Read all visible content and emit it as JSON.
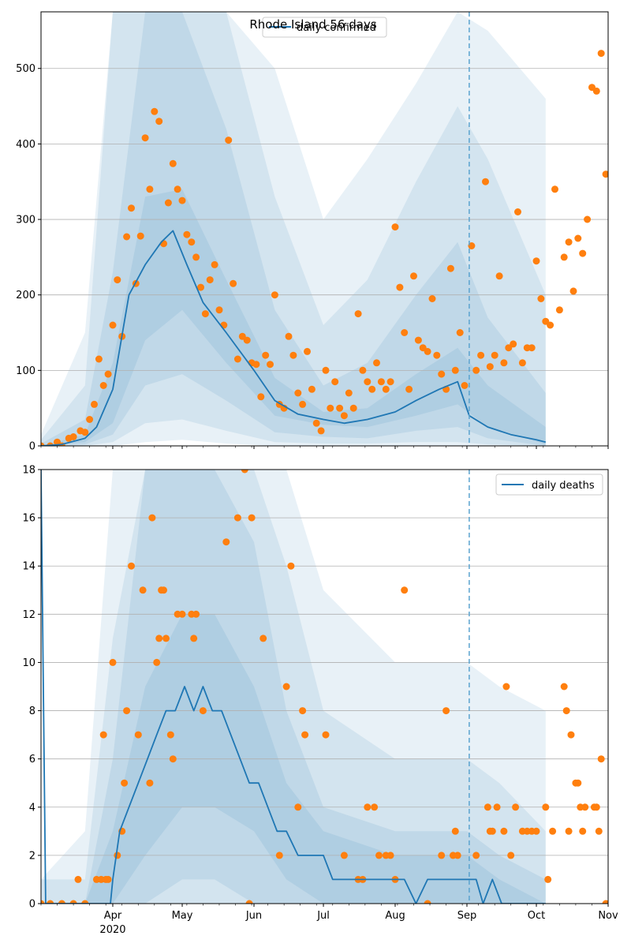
{
  "figure": {
    "title": "Rhode Island 56 days"
  },
  "colors": {
    "model": "#1f77b4",
    "observed": "#ff7f0e",
    "band": "#1f77b4",
    "grid": "#b0b0b0",
    "forecast_line": "#5ba3cf"
  },
  "chart_data": [
    {
      "type": "line",
      "name": "confirmed-panel",
      "title": "Rhode Island 56 days",
      "legend": {
        "label": "daily confirmed",
        "placement": "upper center"
      },
      "x_axis": {
        "type": "date",
        "range": [
          "2020-03-01",
          "2020-11-01"
        ]
      },
      "ylim": [
        0,
        575
      ],
      "yticks": [
        0,
        100,
        200,
        300,
        400,
        500
      ],
      "grid": "y",
      "forecast_start": "2020-09-02",
      "model_series": {
        "name": "daily confirmed",
        "x": [
          "2020-03-01",
          "2020-03-10",
          "2020-03-20",
          "2020-03-25",
          "2020-04-01",
          "2020-04-08",
          "2020-04-15",
          "2020-04-22",
          "2020-04-27",
          "2020-05-03",
          "2020-05-10",
          "2020-05-20",
          "2020-06-01",
          "2020-06-10",
          "2020-06-20",
          "2020-07-01",
          "2020-07-10",
          "2020-07-20",
          "2020-08-01",
          "2020-08-10",
          "2020-08-20",
          "2020-08-28",
          "2020-09-02",
          "2020-09-10",
          "2020-09-20",
          "2020-10-01",
          "2020-10-05"
        ],
        "y": [
          0,
          2,
          10,
          25,
          75,
          200,
          240,
          270,
          285,
          240,
          190,
          150,
          100,
          60,
          42,
          35,
          30,
          35,
          45,
          60,
          75,
          85,
          40,
          25,
          15,
          8,
          5
        ]
      },
      "bands": [
        {
          "x": [
            "2020-03-01",
            "2020-03-20",
            "2020-04-01",
            "2020-04-15",
            "2020-05-01",
            "2020-05-20",
            "2020-06-10",
            "2020-07-01",
            "2020-07-20",
            "2020-08-10",
            "2020-08-28",
            "2020-09-10",
            "2020-10-05"
          ],
          "low": [
            0,
            5,
            30,
            140,
            180,
            110,
            40,
            28,
            25,
            40,
            55,
            25,
            2
          ],
          "high": [
            0,
            15,
            110,
            330,
            340,
            220,
            90,
            45,
            50,
            95,
            130,
            80,
            25
          ]
        },
        {
          "x": [
            "2020-03-01",
            "2020-03-20",
            "2020-04-01",
            "2020-04-15",
            "2020-05-01",
            "2020-05-20",
            "2020-06-10",
            "2020-07-01",
            "2020-07-20",
            "2020-08-10",
            "2020-08-28",
            "2020-09-10",
            "2020-10-05"
          ],
          "low": [
            0,
            2,
            15,
            80,
            95,
            60,
            18,
            12,
            10,
            20,
            25,
            10,
            0
          ],
          "high": [
            3,
            35,
            230,
            575,
            575,
            420,
            180,
            80,
            110,
            200,
            270,
            170,
            70
          ]
        },
        {
          "x": [
            "2020-03-01",
            "2020-03-20",
            "2020-04-01",
            "2020-04-15",
            "2020-05-01",
            "2020-05-20",
            "2020-06-10",
            "2020-07-01",
            "2020-07-20",
            "2020-08-10",
            "2020-08-28",
            "2020-09-10",
            "2020-10-05"
          ],
          "low": [
            0,
            0,
            5,
            30,
            35,
            20,
            5,
            3,
            3,
            5,
            5,
            2,
            0
          ],
          "high": [
            8,
            80,
            575,
            575,
            575,
            575,
            330,
            160,
            220,
            350,
            450,
            380,
            200
          ]
        },
        {
          "x": [
            "2020-03-01",
            "2020-03-20",
            "2020-04-01",
            "2020-04-15",
            "2020-05-01",
            "2020-05-20",
            "2020-06-10",
            "2020-07-01",
            "2020-07-20",
            "2020-08-10",
            "2020-08-28",
            "2020-09-10",
            "2020-10-05"
          ],
          "low": [
            0,
            0,
            0,
            5,
            8,
            3,
            0,
            0,
            0,
            0,
            0,
            0,
            0
          ],
          "high": [
            15,
            150,
            575,
            575,
            575,
            575,
            500,
            300,
            380,
            480,
            575,
            550,
            460
          ]
        }
      ],
      "observed": {
        "x": [
          "2020-03-01",
          "2020-03-05",
          "2020-03-08",
          "2020-03-10",
          "2020-03-13",
          "2020-03-15",
          "2020-03-18",
          "2020-03-20",
          "2020-03-22",
          "2020-03-24",
          "2020-03-26",
          "2020-03-28",
          "2020-03-30",
          "2020-04-01",
          "2020-04-03",
          "2020-04-05",
          "2020-04-07",
          "2020-04-09",
          "2020-04-11",
          "2020-04-13",
          "2020-04-15",
          "2020-04-17",
          "2020-04-19",
          "2020-04-21",
          "2020-04-23",
          "2020-04-25",
          "2020-04-27",
          "2020-04-29",
          "2020-05-01",
          "2020-05-03",
          "2020-05-05",
          "2020-05-07",
          "2020-05-09",
          "2020-05-11",
          "2020-05-13",
          "2020-05-15",
          "2020-05-17",
          "2020-05-19",
          "2020-05-21",
          "2020-05-23",
          "2020-05-25",
          "2020-05-27",
          "2020-05-29",
          "2020-05-31",
          "2020-06-02",
          "2020-06-04",
          "2020-06-06",
          "2020-06-08",
          "2020-06-10",
          "2020-06-12",
          "2020-06-14",
          "2020-06-16",
          "2020-06-18",
          "2020-06-20",
          "2020-06-22",
          "2020-06-24",
          "2020-06-26",
          "2020-06-28",
          "2020-06-30",
          "2020-07-02",
          "2020-07-04",
          "2020-07-06",
          "2020-07-08",
          "2020-07-10",
          "2020-07-12",
          "2020-07-14",
          "2020-07-16",
          "2020-07-18",
          "2020-07-20",
          "2020-07-22",
          "2020-07-24",
          "2020-07-26",
          "2020-07-28",
          "2020-07-30",
          "2020-08-01",
          "2020-08-03",
          "2020-08-05",
          "2020-08-07",
          "2020-08-09",
          "2020-08-11",
          "2020-08-13",
          "2020-08-15",
          "2020-08-17",
          "2020-08-19",
          "2020-08-21",
          "2020-08-23",
          "2020-08-25",
          "2020-08-27",
          "2020-08-29",
          "2020-08-31",
          "2020-09-03",
          "2020-09-05",
          "2020-09-07",
          "2020-09-09",
          "2020-09-11",
          "2020-09-13",
          "2020-09-15",
          "2020-09-17",
          "2020-09-19",
          "2020-09-21",
          "2020-09-23",
          "2020-09-25",
          "2020-09-27",
          "2020-09-29",
          "2020-10-01",
          "2020-10-03",
          "2020-10-05",
          "2020-10-07",
          "2020-10-09",
          "2020-10-11",
          "2020-10-13",
          "2020-10-15",
          "2020-10-17",
          "2020-10-19",
          "2020-10-21",
          "2020-10-23",
          "2020-10-25",
          "2020-10-27",
          "2020-10-29",
          "2020-10-31"
        ],
        "y": [
          0,
          0,
          5,
          0,
          10,
          12,
          20,
          18,
          35,
          55,
          115,
          80,
          95,
          160,
          220,
          145,
          277,
          315,
          215,
          278,
          408,
          340,
          443,
          430,
          268,
          322,
          374,
          340,
          325,
          280,
          270,
          250,
          210,
          175,
          220,
          240,
          180,
          160,
          405,
          215,
          115,
          145,
          140,
          110,
          108,
          65,
          120,
          108,
          200,
          55,
          50,
          145,
          120,
          70,
          55,
          125,
          75,
          30,
          20,
          100,
          50,
          85,
          50,
          40,
          70,
          50,
          175,
          100,
          85,
          75,
          110,
          85,
          75,
          85,
          290,
          210,
          150,
          75,
          225,
          140,
          130,
          125,
          195,
          120,
          95,
          75,
          235,
          100,
          150,
          80,
          265,
          100,
          120,
          350,
          105,
          120,
          225,
          110,
          130,
          135,
          310,
          110,
          130,
          130,
          245,
          195,
          165,
          160,
          340,
          180,
          250,
          270,
          205,
          275,
          255,
          300,
          475,
          470,
          520,
          360
        ]
      }
    },
    {
      "type": "line",
      "name": "deaths-panel",
      "legend": {
        "label": "daily deaths",
        "placement": "upper right"
      },
      "x_axis": {
        "type": "date",
        "range": [
          "2020-03-01",
          "2020-11-01"
        ]
      },
      "xticks": [
        {
          "date": "2020-04-01",
          "label": "Apr",
          "sublabel": "2020"
        },
        {
          "date": "2020-05-01",
          "label": "May"
        },
        {
          "date": "2020-06-01",
          "label": "Jun"
        },
        {
          "date": "2020-07-01",
          "label": "Jul"
        },
        {
          "date": "2020-08-01",
          "label": "Aug"
        },
        {
          "date": "2020-09-01",
          "label": "Sep"
        },
        {
          "date": "2020-10-01",
          "label": "Oct"
        },
        {
          "date": "2020-11-01",
          "label": "Nov"
        }
      ],
      "ylim": [
        0,
        18
      ],
      "yticks": [
        0,
        2,
        4,
        6,
        8,
        10,
        12,
        14,
        16,
        18
      ],
      "grid": "y",
      "forecast_start": "2020-09-02",
      "model_series": {
        "name": "daily deaths",
        "x": [
          "2020-03-01",
          "2020-03-03",
          "2020-03-31",
          "2020-04-01",
          "2020-04-04",
          "2020-04-08",
          "2020-04-12",
          "2020-04-16",
          "2020-04-20",
          "2020-04-24",
          "2020-04-28",
          "2020-05-02",
          "2020-05-06",
          "2020-05-10",
          "2020-05-14",
          "2020-05-18",
          "2020-05-22",
          "2020-05-26",
          "2020-05-30",
          "2020-06-03",
          "2020-06-07",
          "2020-06-11",
          "2020-06-15",
          "2020-06-20",
          "2020-06-25",
          "2020-07-01",
          "2020-07-05",
          "2020-07-15",
          "2020-07-25",
          "2020-08-05",
          "2020-08-10",
          "2020-08-15",
          "2020-08-20",
          "2020-08-25",
          "2020-08-30",
          "2020-09-05",
          "2020-09-08",
          "2020-09-12",
          "2020-09-16",
          "2020-09-20",
          "2020-10-05"
        ],
        "y": [
          18,
          0,
          0,
          1,
          3,
          4,
          5,
          6,
          7,
          8,
          8,
          9,
          8,
          9,
          8,
          8,
          7,
          6,
          5,
          5,
          4,
          3,
          3,
          2,
          2,
          2,
          1,
          1,
          1,
          1,
          0,
          1,
          1,
          1,
          1,
          1,
          0,
          1,
          0,
          0,
          0
        ]
      },
      "bands": [
        {
          "x": [
            "2020-03-01",
            "2020-03-20",
            "2020-04-01",
            "2020-04-15",
            "2020-05-01",
            "2020-05-15",
            "2020-06-01",
            "2020-06-15",
            "2020-07-01",
            "2020-08-01",
            "2020-09-01",
            "2020-09-15",
            "2020-10-05"
          ],
          "low": [
            0,
            0,
            0,
            2,
            4,
            4,
            3,
            1,
            0,
            0,
            0,
            0,
            0
          ],
          "high": [
            0,
            0,
            3,
            9,
            12,
            12,
            9,
            5,
            3,
            2,
            2,
            1,
            0
          ]
        },
        {
          "x": [
            "2020-03-01",
            "2020-03-20",
            "2020-04-01",
            "2020-04-15",
            "2020-05-01",
            "2020-05-15",
            "2020-06-01",
            "2020-06-15",
            "2020-07-01",
            "2020-08-01",
            "2020-09-01",
            "2020-09-15",
            "2020-10-05"
          ],
          "low": [
            0,
            0,
            0,
            0,
            1,
            1,
            0,
            0,
            0,
            0,
            0,
            0,
            0
          ],
          "high": [
            0,
            0,
            6,
            18,
            18,
            18,
            15,
            8,
            4,
            3,
            3,
            2,
            1
          ]
        },
        {
          "x": [
            "2020-03-01",
            "2020-03-20",
            "2020-04-01",
            "2020-04-15",
            "2020-05-01",
            "2020-05-15",
            "2020-06-01",
            "2020-06-15",
            "2020-07-01",
            "2020-08-01",
            "2020-09-01",
            "2020-09-15",
            "2020-10-05"
          ],
          "low": [
            0,
            0,
            0,
            0,
            0,
            0,
            0,
            0,
            0,
            0,
            0,
            0,
            0
          ],
          "high": [
            1,
            1,
            11,
            18,
            18,
            18,
            18,
            14,
            8,
            6,
            6,
            5,
            3
          ]
        },
        {
          "x": [
            "2020-03-01",
            "2020-03-20",
            "2020-04-01",
            "2020-04-15",
            "2020-05-01",
            "2020-05-15",
            "2020-06-01",
            "2020-06-15",
            "2020-07-01",
            "2020-08-01",
            "2020-09-01",
            "2020-09-15",
            "2020-10-05"
          ],
          "low": [
            0,
            0,
            0,
            0,
            0,
            0,
            0,
            0,
            0,
            0,
            0,
            0,
            0
          ],
          "high": [
            1,
            3,
            18,
            18,
            18,
            18,
            18,
            18,
            13,
            10,
            10,
            9,
            8
          ]
        }
      ],
      "observed": {
        "x": [
          "2020-03-01",
          "2020-03-05",
          "2020-03-10",
          "2020-03-15",
          "2020-03-17",
          "2020-03-20",
          "2020-03-25",
          "2020-03-27",
          "2020-03-28",
          "2020-03-29",
          "2020-03-30",
          "2020-04-01",
          "2020-04-03",
          "2020-04-05",
          "2020-04-06",
          "2020-04-07",
          "2020-04-09",
          "2020-04-12",
          "2020-04-14",
          "2020-04-17",
          "2020-04-18",
          "2020-04-20",
          "2020-04-21",
          "2020-04-22",
          "2020-04-23",
          "2020-04-24",
          "2020-04-26",
          "2020-04-27",
          "2020-04-29",
          "2020-05-01",
          "2020-05-05",
          "2020-05-06",
          "2020-05-07",
          "2020-05-10",
          "2020-05-20",
          "2020-05-25",
          "2020-05-28",
          "2020-05-30",
          "2020-05-31",
          "2020-06-05",
          "2020-06-12",
          "2020-06-15",
          "2020-06-17",
          "2020-06-20",
          "2020-06-22",
          "2020-06-23",
          "2020-07-02",
          "2020-07-10",
          "2020-07-16",
          "2020-07-18",
          "2020-07-20",
          "2020-07-23",
          "2020-07-25",
          "2020-07-28",
          "2020-07-30",
          "2020-08-01",
          "2020-08-05",
          "2020-08-15",
          "2020-08-21",
          "2020-08-23",
          "2020-08-26",
          "2020-08-27",
          "2020-08-28",
          "2020-09-05",
          "2020-09-10",
          "2020-09-11",
          "2020-09-12",
          "2020-09-14",
          "2020-09-17",
          "2020-09-18",
          "2020-09-20",
          "2020-09-22",
          "2020-09-25",
          "2020-09-27",
          "2020-09-29",
          "2020-10-01",
          "2020-10-05",
          "2020-10-06",
          "2020-10-08",
          "2020-10-13",
          "2020-10-14",
          "2020-10-15",
          "2020-10-16",
          "2020-10-18",
          "2020-10-19",
          "2020-10-20",
          "2020-10-21",
          "2020-10-22",
          "2020-10-26",
          "2020-10-27",
          "2020-10-28",
          "2020-10-29",
          "2020-10-31"
        ],
        "y": [
          0,
          0,
          0,
          0,
          1,
          0,
          1,
          1,
          7,
          1,
          1,
          10,
          2,
          3,
          5,
          8,
          14,
          7,
          13,
          5,
          16,
          10,
          11,
          13,
          13,
          11,
          7,
          6,
          12,
          12,
          12,
          11,
          12,
          8,
          15,
          16,
          18,
          0,
          16,
          11,
          2,
          9,
          14,
          4,
          8,
          7,
          7,
          2,
          1,
          1,
          4,
          4,
          2,
          2,
          2,
          1,
          13,
          0,
          2,
          8,
          2,
          3,
          2,
          2,
          4,
          3,
          3,
          4,
          3,
          9,
          2,
          4,
          3,
          3,
          3,
          3,
          4,
          1,
          3,
          9,
          8,
          3,
          7,
          5,
          5,
          4,
          3,
          4,
          4,
          4,
          3,
          6,
          0
        ]
      }
    }
  ]
}
